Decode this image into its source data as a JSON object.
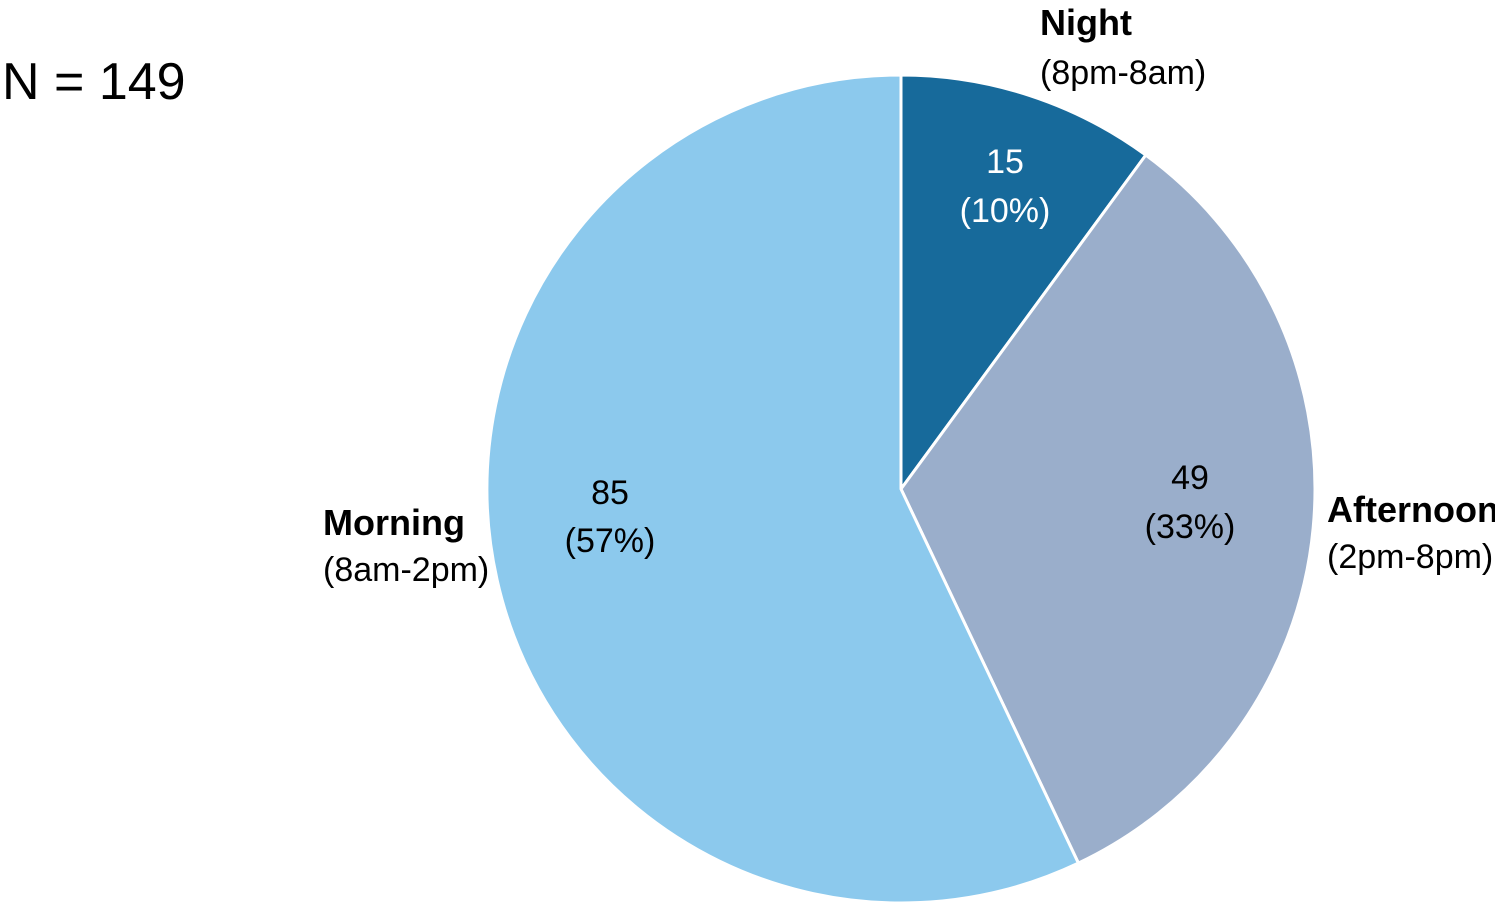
{
  "sample_label": "N = 149",
  "chart_data": {
    "type": "pie",
    "start_angle_deg": 0,
    "direction": "clockwise",
    "slices": [
      {
        "name": "Night",
        "range": "(8pm-8am)",
        "value": 15,
        "percent_label": "(10%)",
        "color": "#176a9b",
        "value_text_color": "#ffffff"
      },
      {
        "name": "Afternoon",
        "range": "(2pm-8pm)",
        "value": 49,
        "percent_label": "(33%)",
        "color": "#9aaecb",
        "value_text_color": "#000000"
      },
      {
        "name": "Morning",
        "range": "(8am-2pm)",
        "value": 85,
        "percent_label": "(57%)",
        "color": "#8cc9ed",
        "value_text_color": "#000000"
      }
    ],
    "slice_border_color": "#ffffff"
  }
}
